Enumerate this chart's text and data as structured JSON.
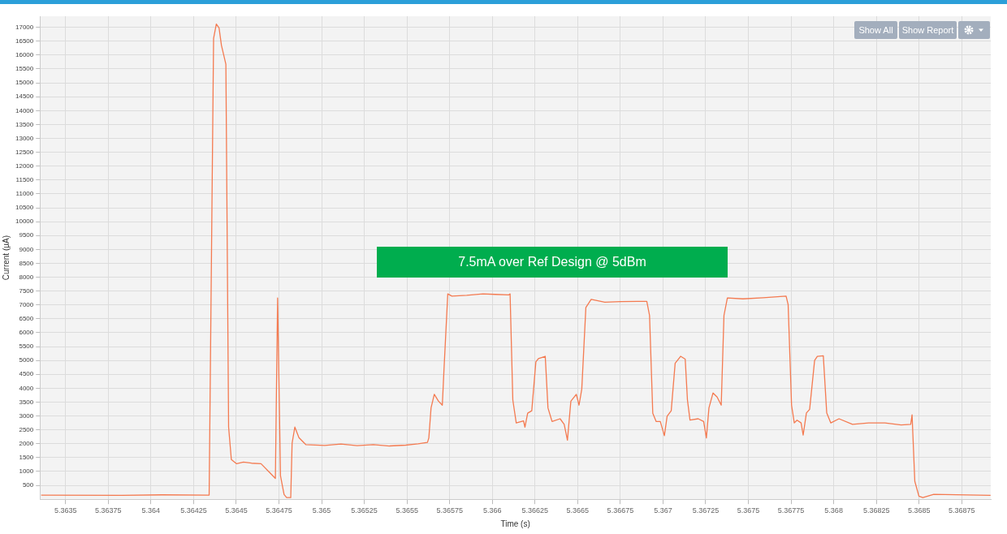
{
  "chart_data": {
    "type": "line",
    "xlabel": "Time (s)",
    "ylabel": "Current (μA)",
    "annotations": [
      "7.5mA over Ref Design @ 5dBm",
      "Show All",
      "Show Report"
    ],
    "xlim": [
      5.36335,
      5.36892
    ],
    "ylim": [
      0,
      17400
    ],
    "xticks": [
      5.3635,
      5.36375,
      5.364,
      5.36425,
      5.3645,
      5.36475,
      5.365,
      5.36525,
      5.3655,
      5.36575,
      5.366,
      5.36625,
      5.3665,
      5.36675,
      5.367,
      5.36725,
      5.3675,
      5.36775,
      5.368,
      5.36825,
      5.3685,
      5.36875
    ],
    "yticks": [
      500,
      1000,
      1500,
      2000,
      2500,
      3000,
      3500,
      4000,
      4500,
      5000,
      5500,
      6000,
      6500,
      7000,
      7500,
      8000,
      8500,
      9000,
      9500,
      10000,
      10500,
      11000,
      11500,
      12000,
      12500,
      13000,
      13500,
      14000,
      14500,
      15000,
      15500,
      16000,
      16500,
      17000
    ],
    "grid": true,
    "legend": false,
    "marker": "none",
    "line_style": "solid",
    "series": [
      {
        "color": "#f47a50",
        "x": [
          5.363357,
          5.363828,
          5.364066,
          5.364341,
          5.364367,
          5.364383,
          5.364399,
          5.364413,
          5.364439,
          5.364455,
          5.364471,
          5.364502,
          5.364542,
          5.364589,
          5.364645,
          5.364699,
          5.364729,
          5.364742,
          5.364759,
          5.36478,
          5.364795,
          5.364819,
          5.364827,
          5.364843,
          5.364867,
          5.364907,
          5.365018,
          5.365113,
          5.365208,
          5.365303,
          5.365398,
          5.365493,
          5.365565,
          5.36562,
          5.365628,
          5.365641,
          5.36566,
          5.365684,
          5.365707,
          5.365716,
          5.365739,
          5.365763,
          5.36585,
          5.365945,
          5.366017,
          5.366096,
          5.366104,
          5.36612,
          5.36614,
          5.366183,
          5.366191,
          5.366207,
          5.366231,
          5.366255,
          5.36627,
          5.36631,
          5.366326,
          5.36635,
          5.366397,
          5.366421,
          5.36644,
          5.36646,
          5.366492,
          5.366508,
          5.366524,
          5.366548,
          5.366579,
          5.366659,
          5.366754,
          5.366849,
          5.366905,
          5.366921,
          5.36694,
          5.36696,
          5.366984,
          5.367008,
          5.367024,
          5.367048,
          5.367071,
          5.367103,
          5.36713,
          5.367143,
          5.367158,
          5.367206,
          5.367238,
          5.367254,
          5.367269,
          5.367293,
          5.367317,
          5.367341,
          5.367357,
          5.367377,
          5.367468,
          5.367587,
          5.367721,
          5.367733,
          5.367753,
          5.367769,
          5.367785,
          5.367809,
          5.367821,
          5.36784,
          5.367859,
          5.367888,
          5.367904,
          5.367939,
          5.367959,
          5.367983,
          5.368031,
          5.36811,
          5.368205,
          5.3683,
          5.368395,
          5.368451,
          5.368459,
          5.368475,
          5.368499,
          5.368522,
          5.368586,
          5.368919
        ],
        "values": [
          150,
          140,
          160,
          150,
          16600,
          17120,
          16980,
          16350,
          15670,
          2600,
          1430,
          1280,
          1340,
          1300,
          1280,
          940,
          750,
          7250,
          840,
          170,
          60,
          60,
          2020,
          2600,
          2220,
          1970,
          1940,
          1990,
          1930,
          1970,
          1920,
          1950,
          2000,
          2050,
          2210,
          3290,
          3780,
          3540,
          3390,
          4570,
          7400,
          7320,
          7350,
          7400,
          7380,
          7360,
          7400,
          3580,
          2750,
          2820,
          2600,
          3100,
          3190,
          4950,
          5070,
          5150,
          3290,
          2800,
          2900,
          2700,
          2130,
          3530,
          3780,
          3390,
          3970,
          6910,
          7200,
          7100,
          7120,
          7130,
          7130,
          6620,
          3100,
          2800,
          2800,
          2290,
          2990,
          3190,
          4900,
          5150,
          5050,
          3580,
          2850,
          2900,
          2800,
          2210,
          3290,
          3830,
          3680,
          3390,
          6620,
          7250,
          7220,
          7260,
          7320,
          7010,
          3390,
          2750,
          2850,
          2750,
          2310,
          3110,
          3240,
          5000,
          5150,
          5170,
          3110,
          2750,
          2900,
          2700,
          2750,
          2750,
          2680,
          2700,
          3040,
          650,
          110,
          60,
          180,
          140
        ]
      }
    ]
  }
}
